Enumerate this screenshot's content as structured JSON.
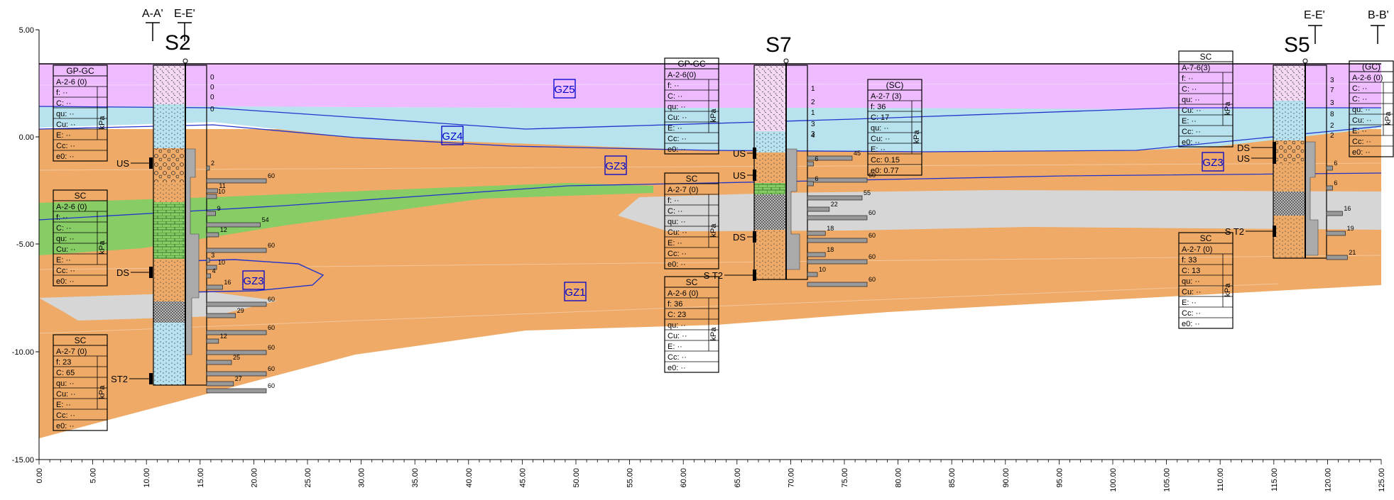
{
  "colors": {
    "GZ5": "#eebbff",
    "GZ4": "#b8e2ee",
    "GZ3": "#eeaa66",
    "GZ2": "#88cc66",
    "grey_lens": "#d6d6d6",
    "GZ1": "#eeaa66",
    "zone_label": "#0000cc",
    "bar": "#999999"
  },
  "axes": {
    "y_ticks": [
      "5.00",
      "0.00",
      "-5.00",
      "-10.00",
      "-15.00"
    ],
    "x_ticks": [
      "0.00",
      "5.00",
      "10.00",
      "15.00",
      "20.00",
      "25.00",
      "30.00",
      "35.00",
      "40.00",
      "45.00",
      "50.00",
      "55.00",
      "60.00",
      "65.00",
      "70.00",
      "75.00",
      "80.00",
      "85.00",
      "90.00",
      "95.00",
      "100.00",
      "105.00",
      "110.00",
      "115.00",
      "120.00",
      "125.00"
    ]
  },
  "section_marks": [
    "A-A'",
    "E-E'",
    "E-E'",
    "B-B'"
  ],
  "boreholes": [
    {
      "id": "S2"
    },
    {
      "id": "S7"
    },
    {
      "id": "S5"
    }
  ],
  "zone_labels": [
    "GZ5",
    "GZ4",
    "GZ3",
    "GZ3",
    "GZ1",
    "GZ3"
  ],
  "sample_labels": [
    "US",
    "DS",
    "ST2",
    "US",
    "US",
    "DS",
    "S T2",
    "DS",
    "US",
    "S T2"
  ],
  "unit_kpa": "kPa",
  "soil_boxes": [
    {
      "name": "GP-GC",
      "rows": [
        "A-2-6 (0)",
        "f:  ··",
        "C:  ··",
        "qu:  ··",
        "Cu:  ··",
        "E:  ··",
        "Cc:  ··",
        "e0:  ··"
      ]
    },
    {
      "name": "SC",
      "rows": [
        "A-2-6 (0)",
        "f:  ··",
        "C:  ··",
        "qu:  ··",
        "Cu:  ··",
        "E:  ··",
        "Cc:  ··",
        "e0:  ··"
      ]
    },
    {
      "name": "SC",
      "rows": [
        "A-2-7 (0)",
        "f:  23",
        "C:  65",
        "qu:  ··",
        "Cu:  ··",
        "E:  ··",
        "Cc:  ··",
        "e0:  ··"
      ]
    },
    {
      "name": "GP-GC",
      "rows": [
        "A-2-6(0)",
        "f:  ··",
        "C:  ··",
        "qu:  ··",
        "Cu:  ··",
        "E:  ··",
        "Cc:  ··",
        "e0:  ··"
      ]
    },
    {
      "name": "SC",
      "rows": [
        "A-2-7 (0)",
        "f:  ··",
        "C:  ··",
        "qu:  ··",
        "Cu:  ··",
        "E:  ··",
        "Cc:  ··",
        "e0:  ··"
      ]
    },
    {
      "name": "SC",
      "rows": [
        "A-2-6 (0)",
        "f:  36",
        "C:  23",
        "qu:  ··",
        "Cu:  ··",
        "E:  ··",
        "Cc:  ··",
        "e0:  ··"
      ]
    },
    {
      "name": "(SC)",
      "rows": [
        "A-2-7 (3)",
        "f:  36",
        "C:  17",
        "qu:  ··",
        "Cu:  ··",
        "E:  ··",
        "Cc: 0.15",
        "e0: 0.77"
      ]
    },
    {
      "name": "SC",
      "rows": [
        "A-7-6(3)",
        "f:  ··",
        "C:  ··",
        "qu:  ··",
        "Cu:  ··",
        "E:  ··",
        "Cc:  ··",
        "e0:  ··"
      ]
    },
    {
      "name": "SC",
      "rows": [
        "A-2-7 (0)",
        "f:  33",
        "C:  13",
        "qu:  ··",
        "Cu:  ··",
        "E:  ··",
        "Cc:  ··",
        "e0:  ··"
      ]
    },
    {
      "name": "(GC)",
      "rows": [
        "A-2-6 (0)",
        "C:  ··",
        "C:  ··",
        "qu:  ··",
        "Cu:  ··",
        "E:  ··",
        "Cc:  ··",
        "e0:  ··"
      ]
    }
  ],
  "spt": [
    {
      "borehole": "S2",
      "top_values": [
        "0",
        "0",
        "0",
        "0"
      ],
      "values": [
        "2",
        "60",
        "11",
        "10",
        "9",
        "54",
        "12",
        "60",
        "3",
        "10",
        "4",
        "16",
        "60",
        "29",
        "60",
        "12",
        "60",
        "25",
        "60",
        "27",
        "60"
      ]
    },
    {
      "borehole": "S7",
      "top_values": [
        "1",
        "2",
        "1",
        "3",
        "4",
        "3"
      ],
      "values": [
        "45",
        "6",
        "60",
        "6",
        "55",
        "22",
        "60",
        "18",
        "60",
        "18",
        "60",
        "10",
        "60"
      ]
    },
    {
      "borehole": "S5",
      "top_values": [
        "3",
        "7",
        "3",
        "8",
        "2",
        "2"
      ],
      "values": [
        "6",
        "6",
        "16",
        "19",
        "21"
      ]
    }
  ]
}
